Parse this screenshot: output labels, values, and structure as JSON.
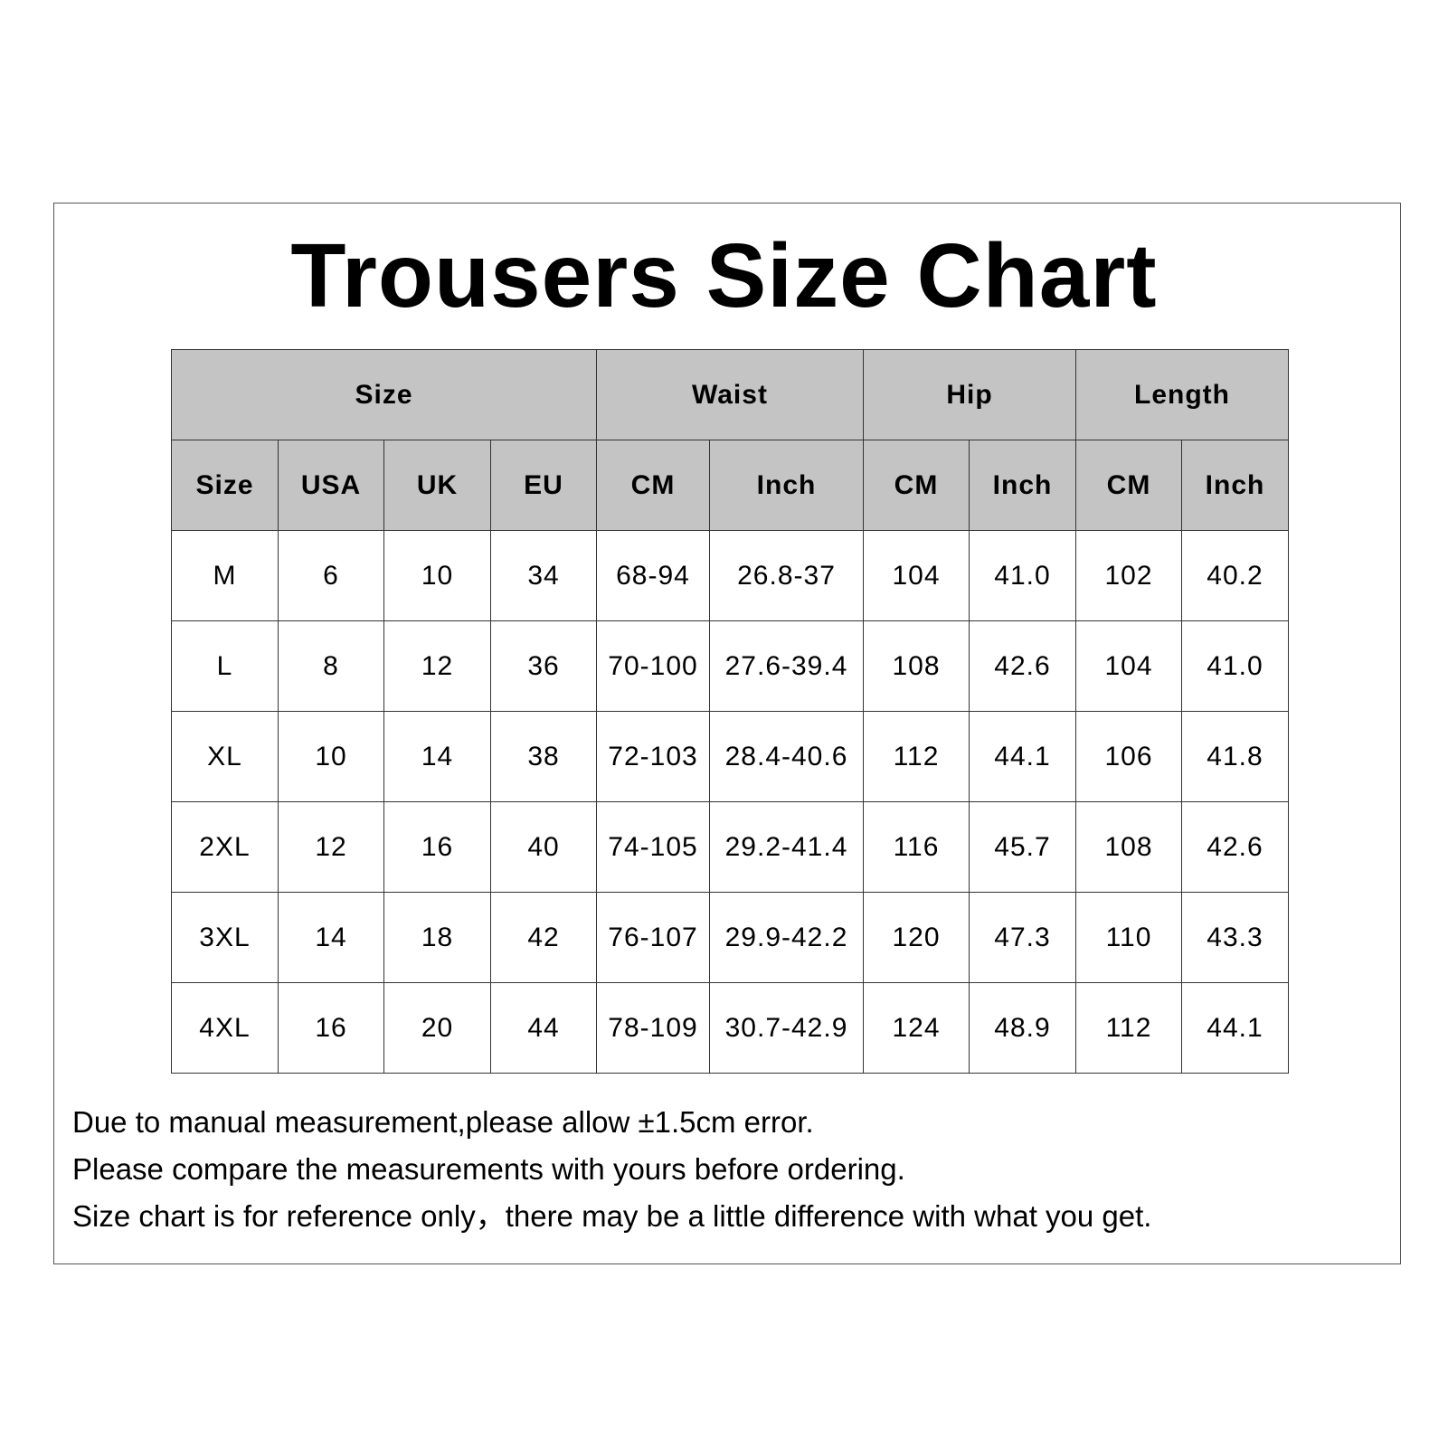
{
  "title": "Trousers Size Chart",
  "table": {
    "group_headers": [
      "Size",
      "Waist",
      "Hip",
      "Length"
    ],
    "sub_headers": [
      "Size",
      "USA",
      "UK",
      "EU",
      "CM",
      "Inch",
      "CM",
      "Inch",
      "CM",
      "Inch"
    ],
    "header_color": "#c4c4c4",
    "rows": [
      [
        "M",
        "6",
        "10",
        "34",
        "68-94",
        "26.8-37",
        "104",
        "41.0",
        "102",
        "40.2"
      ],
      [
        "L",
        "8",
        "12",
        "36",
        "70-100",
        "27.6-39.4",
        "108",
        "42.6",
        "104",
        "41.0"
      ],
      [
        "XL",
        "10",
        "14",
        "38",
        "72-103",
        "28.4-40.6",
        "112",
        "44.1",
        "106",
        "41.8"
      ],
      [
        "2XL",
        "12",
        "16",
        "40",
        "74-105",
        "29.2-41.4",
        "116",
        "45.7",
        "108",
        "42.6"
      ],
      [
        "3XL",
        "14",
        "18",
        "42",
        "76-107",
        "29.9-42.2",
        "120",
        "47.3",
        "110",
        "43.3"
      ],
      [
        "4XL",
        "16",
        "20",
        "44",
        "78-109",
        "30.7-42.9",
        "124",
        "48.9",
        "112",
        "44.1"
      ]
    ]
  },
  "notes": [
    "Due to manual measurement,please allow ±1.5cm error.",
    "Please compare the measurements with yours before ordering.",
    "Size chart is for reference only，there may be a little difference with what you get."
  ]
}
